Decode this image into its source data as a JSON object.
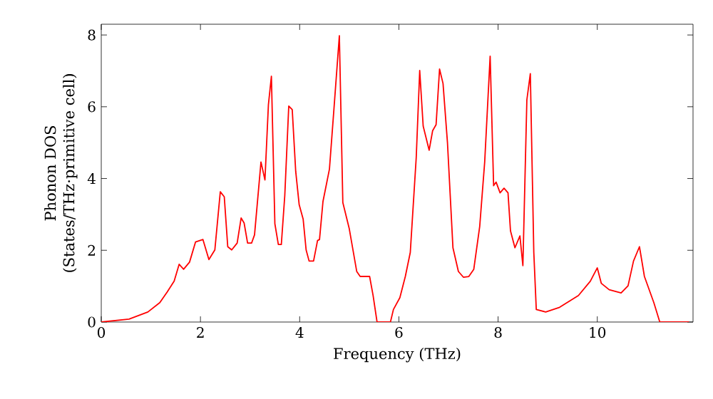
{
  "chart_data": {
    "type": "line",
    "xlabel": "Frequency (THz)",
    "ylabel": "Phonon DOS\n(States/THz·primitive cell)",
    "xlim": [
      0,
      11.93
    ],
    "ylim": [
      0,
      8.3
    ],
    "xticks": [
      0,
      2,
      4,
      6,
      8,
      10
    ],
    "yticks": [
      0,
      2,
      4,
      6,
      8
    ],
    "marker": "none",
    "line_style": "solid",
    "series": [
      {
        "color": "#ff0000",
        "x": [
          0,
          0.56,
          0.94,
          1.18,
          1.33,
          1.47,
          1.57,
          1.66,
          1.78,
          1.9,
          2.05,
          2.17,
          2.29,
          2.4,
          2.48,
          2.55,
          2.63,
          2.74,
          2.82,
          2.88,
          2.95,
          3.03,
          3.09,
          3.22,
          3.3,
          3.37,
          3.43,
          3.5,
          3.57,
          3.63,
          3.7,
          3.78,
          3.85,
          3.92,
          3.99,
          4.07,
          4.13,
          4.19,
          4.28,
          4.36,
          4.4,
          4.47,
          4.6,
          4.69,
          4.8,
          4.87,
          5.0,
          5.15,
          5.22,
          5.41,
          5.48,
          5.56,
          5.83,
          5.89,
          6.02,
          6.13,
          6.23,
          6.35,
          6.42,
          6.49,
          6.61,
          6.68,
          6.75,
          6.82,
          6.89,
          6.98,
          7.09,
          7.2,
          7.3,
          7.41,
          7.51,
          7.63,
          7.73,
          7.84,
          7.91,
          7.96,
          8.04,
          8.12,
          8.2,
          8.25,
          8.34,
          8.44,
          8.5,
          8.58,
          8.65,
          8.72,
          8.77,
          8.96,
          9.24,
          9.62,
          9.86,
          10.0,
          10.08,
          10.24,
          10.48,
          10.62,
          10.73,
          10.85,
          10.95,
          11.14,
          11.26,
          11.85
        ],
        "values": [
          0,
          0.08,
          0.28,
          0.54,
          0.84,
          1.14,
          1.61,
          1.47,
          1.67,
          2.23,
          2.3,
          1.74,
          2.01,
          3.63,
          3.49,
          2.1,
          2.01,
          2.2,
          2.9,
          2.76,
          2.2,
          2.2,
          2.43,
          4.46,
          3.96,
          6.06,
          6.85,
          2.74,
          2.16,
          2.16,
          3.53,
          6.02,
          5.92,
          4.2,
          3.27,
          2.87,
          2.01,
          1.7,
          1.7,
          2.27,
          2.3,
          3.36,
          4.26,
          5.92,
          7.98,
          3.33,
          2.6,
          1.41,
          1.27,
          1.27,
          0.74,
          0,
          0,
          0.35,
          0.68,
          1.27,
          1.94,
          4.59,
          7.01,
          5.46,
          4.79,
          5.33,
          5.5,
          7.05,
          6.65,
          4.99,
          2.07,
          1.41,
          1.25,
          1.27,
          1.47,
          2.67,
          4.46,
          7.41,
          3.8,
          3.9,
          3.6,
          3.73,
          3.6,
          2.54,
          2.07,
          2.4,
          1.57,
          6.19,
          6.92,
          1.94,
          0.35,
          0.28,
          0.41,
          0.74,
          1.14,
          1.51,
          1.08,
          0.9,
          0.81,
          1.01,
          1.7,
          2.1,
          1.27,
          0.54,
          0,
          0
        ]
      }
    ]
  }
}
